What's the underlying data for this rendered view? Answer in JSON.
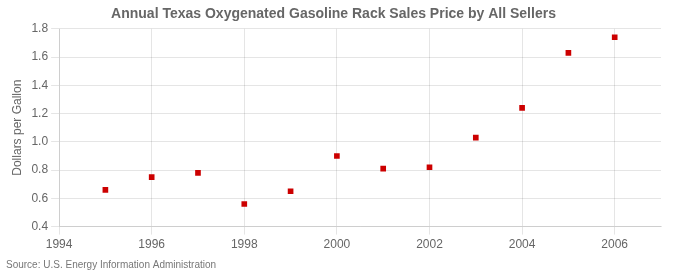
{
  "chart_data": {
    "type": "scatter",
    "title": "Annual Texas Oxygenated Gasoline Rack Sales Price by All Sellers",
    "ylabel": "Dollars per Gallon",
    "annotations": [
      "Source: U.S. Energy Information Administration"
    ],
    "x": [
      1995,
      1996,
      1997,
      1998,
      1999,
      2000,
      2001,
      2002,
      2003,
      2004,
      2005,
      2006
    ],
    "values": [
      0.66,
      0.75,
      0.78,
      0.56,
      0.65,
      0.9,
      0.81,
      0.82,
      1.03,
      1.24,
      1.63,
      1.74
    ],
    "color": "#cc0000",
    "marker": "square",
    "xlim": [
      1994,
      2007
    ],
    "ylim": [
      0.4,
      1.8
    ],
    "xticks": [
      1994,
      1996,
      1998,
      2000,
      2002,
      2004,
      2006
    ],
    "yticks": [
      0.4,
      0.6,
      0.8,
      {
        "value": 1.0,
        "label": "1.0"
      },
      1.2,
      1.4,
      1.6,
      1.8
    ],
    "grid": true
  }
}
